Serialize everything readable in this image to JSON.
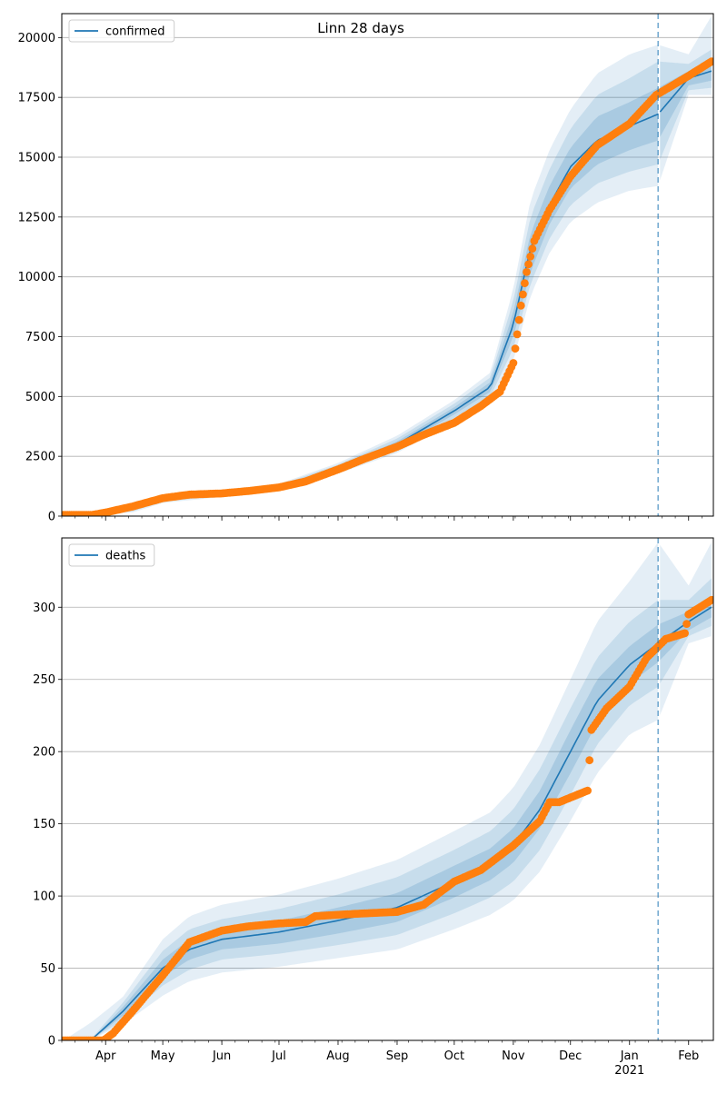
{
  "title": "Linn 28 days",
  "chart_data": [
    {
      "type": "line",
      "title": "Linn 28 days",
      "xlabel": "",
      "ylabel": "",
      "ylim": [
        0,
        21000
      ],
      "yticks": [
        0,
        2500,
        5000,
        7500,
        10000,
        12500,
        15000,
        17500,
        20000
      ],
      "ytick_labels": [
        "0",
        "2500",
        "5000",
        "7500",
        "10000",
        "12500",
        "15000",
        "17500",
        "20000"
      ],
      "grid": "horizontal",
      "legend": {
        "position": "top-left",
        "entries": [
          "confirmed"
        ]
      },
      "vline_date": "2021-01-16",
      "series": [
        {
          "name": "confirmed",
          "kind": "model median with 50/80/95% bands",
          "color": "#1f77b4",
          "x": [
            "2020-03-10",
            "2020-04-01",
            "2020-04-15",
            "2020-05-01",
            "2020-06-01",
            "2020-07-01",
            "2020-08-01",
            "2020-09-01",
            "2020-10-01",
            "2020-10-20",
            "2020-11-01",
            "2020-11-10",
            "2020-11-20",
            "2020-12-01",
            "2020-12-15",
            "2021-01-01",
            "2021-01-16",
            "2021-02-01",
            "2021-02-13"
          ],
          "y": [
            50,
            100,
            300,
            700,
            950,
            1200,
            2000,
            3000,
            4400,
            5400,
            8000,
            11200,
            13000,
            14600,
            15700,
            16300,
            16800,
            18300,
            18600
          ],
          "band50": [
            [
              50,
              100,
              250,
              650,
              900,
              1150,
              1920,
              2880,
              4250,
              5200,
              7500,
              10200,
              12200,
              13700,
              14700,
              15300,
              15700,
              18000,
              18200
            ],
            [
              50,
              100,
              350,
              750,
              1000,
              1250,
              2080,
              3120,
              4550,
              5600,
              8500,
              11800,
              13800,
              15400,
              16700,
              17300,
              17900,
              18600,
              19000
            ]
          ],
          "band80": [
            [
              50,
              100,
              200,
              600,
              850,
              1100,
              1850,
              2760,
              4100,
              5000,
              7000,
              9700,
              11600,
              13000,
              13900,
              14400,
              14700,
              17800,
              17900
            ],
            [
              50,
              100,
              400,
              800,
              1050,
              1300,
              2150,
              3240,
              4700,
              5800,
              9000,
              12500,
              14500,
              16200,
              17600,
              18300,
              19000,
              18900,
              19500
            ]
          ],
          "band95": [
            [
              50,
              100,
              150,
              550,
              800,
              1050,
              1780,
              2640,
              3950,
              4800,
              6500,
              9200,
              11000,
              12300,
              13100,
              13600,
              13800,
              17600,
              17600
            ],
            [
              50,
              150,
              450,
              850,
              1100,
              1350,
              2220,
              3360,
              4850,
              6000,
              9500,
              13200,
              15300,
              17000,
              18500,
              19300,
              19700,
              19300,
              20900
            ]
          ]
        },
        {
          "name": "observed confirmed",
          "kind": "points",
          "color": "#ff7f0e",
          "x": [
            "2020-03-10",
            "2020-03-25",
            "2020-04-01",
            "2020-04-15",
            "2020-05-01",
            "2020-05-15",
            "2020-06-01",
            "2020-06-15",
            "2020-07-01",
            "2020-07-15",
            "2020-08-01",
            "2020-08-15",
            "2020-09-01",
            "2020-09-15",
            "2020-10-01",
            "2020-10-15",
            "2020-10-25",
            "2020-11-01",
            "2020-11-05",
            "2020-11-08",
            "2020-11-12",
            "2020-11-20",
            "2020-12-01",
            "2020-12-15",
            "2021-01-01",
            "2021-01-15",
            "2021-02-01",
            "2021-02-13"
          ],
          "y": [
            50,
            50,
            150,
            400,
            750,
            900,
            950,
            1050,
            1200,
            1450,
            1950,
            2400,
            2900,
            3400,
            3900,
            4600,
            5200,
            6400,
            8800,
            10200,
            11500,
            12800,
            14200,
            15500,
            16400,
            17600,
            18400,
            19000
          ]
        }
      ]
    },
    {
      "type": "line",
      "title": "",
      "xlabel": "",
      "ylabel": "",
      "ylim": [
        0,
        348
      ],
      "yticks": [
        0,
        50,
        100,
        150,
        200,
        250,
        300
      ],
      "ytick_labels": [
        "0",
        "50",
        "100",
        "150",
        "200",
        "250",
        "300"
      ],
      "grid": "horizontal",
      "legend": {
        "position": "top-left",
        "entries": [
          "deaths"
        ]
      },
      "vline_date": "2021-01-16",
      "x_tick_labels": [
        "Apr",
        "May",
        "Jun",
        "Jul",
        "Aug",
        "Sep",
        "Oct",
        "Nov",
        "Dec",
        "Jan",
        "Feb"
      ],
      "x_year_label": "2021",
      "series": [
        {
          "name": "deaths",
          "kind": "model median with 50/80/95% bands",
          "color": "#1f77b4",
          "x": [
            "2020-03-10",
            "2020-03-25",
            "2020-04-10",
            "2020-05-01",
            "2020-05-15",
            "2020-06-01",
            "2020-07-01",
            "2020-08-01",
            "2020-09-01",
            "2020-10-01",
            "2020-10-20",
            "2020-11-01",
            "2020-11-15",
            "2020-12-01",
            "2020-12-15",
            "2021-01-01",
            "2021-01-16",
            "2021-02-01",
            "2021-02-13"
          ],
          "y": [
            0,
            1,
            20,
            50,
            63,
            70,
            75,
            83,
            92,
            110,
            122,
            135,
            160,
            200,
            235,
            260,
            275,
            290,
            300
          ],
          "band50": [
            [
              0,
              1,
              17,
              44,
              56,
              63,
              67,
              74,
              82,
              99,
              111,
              123,
              147,
              185,
              220,
              247,
              262,
              284,
              293
            ],
            [
              0,
              1,
              23,
              56,
              70,
              77,
              83,
              92,
              102,
              121,
              133,
              147,
              173,
              215,
              250,
              273,
              288,
              297,
              308
            ]
          ],
          "band80": [
            [
              0,
              1,
              14,
              38,
              49,
              56,
              60,
              66,
              73,
              88,
              99,
              110,
              132,
              170,
              205,
              232,
              245,
              280,
              287
            ],
            [
              0,
              2,
              26,
              62,
              77,
              84,
              91,
              101,
              113,
              132,
              145,
              160,
              188,
              230,
              265,
              290,
              305,
              305,
              320
            ]
          ],
          "band95": [
            [
              0,
              1,
              11,
              31,
              41,
              47,
              51,
              57,
              63,
              77,
              87,
              97,
              117,
              152,
              185,
              212,
              222,
              275,
              280
            ],
            [
              0,
              13,
              30,
              70,
              86,
              94,
              101,
              112,
              125,
              145,
              158,
              175,
              205,
              250,
              290,
              318,
              345,
              315,
              345
            ]
          ]
        },
        {
          "name": "observed deaths",
          "kind": "points",
          "color": "#ff7f0e",
          "x": [
            "2020-03-10",
            "2020-03-31",
            "2020-04-05",
            "2020-04-15",
            "2020-05-01",
            "2020-05-15",
            "2020-06-01",
            "2020-06-15",
            "2020-07-01",
            "2020-07-15",
            "2020-07-20",
            "2020-08-01",
            "2020-08-15",
            "2020-09-01",
            "2020-09-15",
            "2020-10-01",
            "2020-10-15",
            "2020-11-01",
            "2020-11-15",
            "2020-11-20",
            "2020-11-25",
            "2020-12-10",
            "2020-12-12",
            "2020-12-20",
            "2021-01-01",
            "2021-01-10",
            "2021-01-20",
            "2021-01-30",
            "2021-02-01",
            "2021-02-13"
          ],
          "y": [
            0,
            0,
            5,
            20,
            45,
            68,
            76,
            79,
            81,
            82,
            86,
            87,
            88,
            89,
            94,
            110,
            118,
            135,
            152,
            165,
            165,
            173,
            215,
            230,
            245,
            265,
            278,
            282,
            295,
            305
          ]
        }
      ]
    }
  ]
}
